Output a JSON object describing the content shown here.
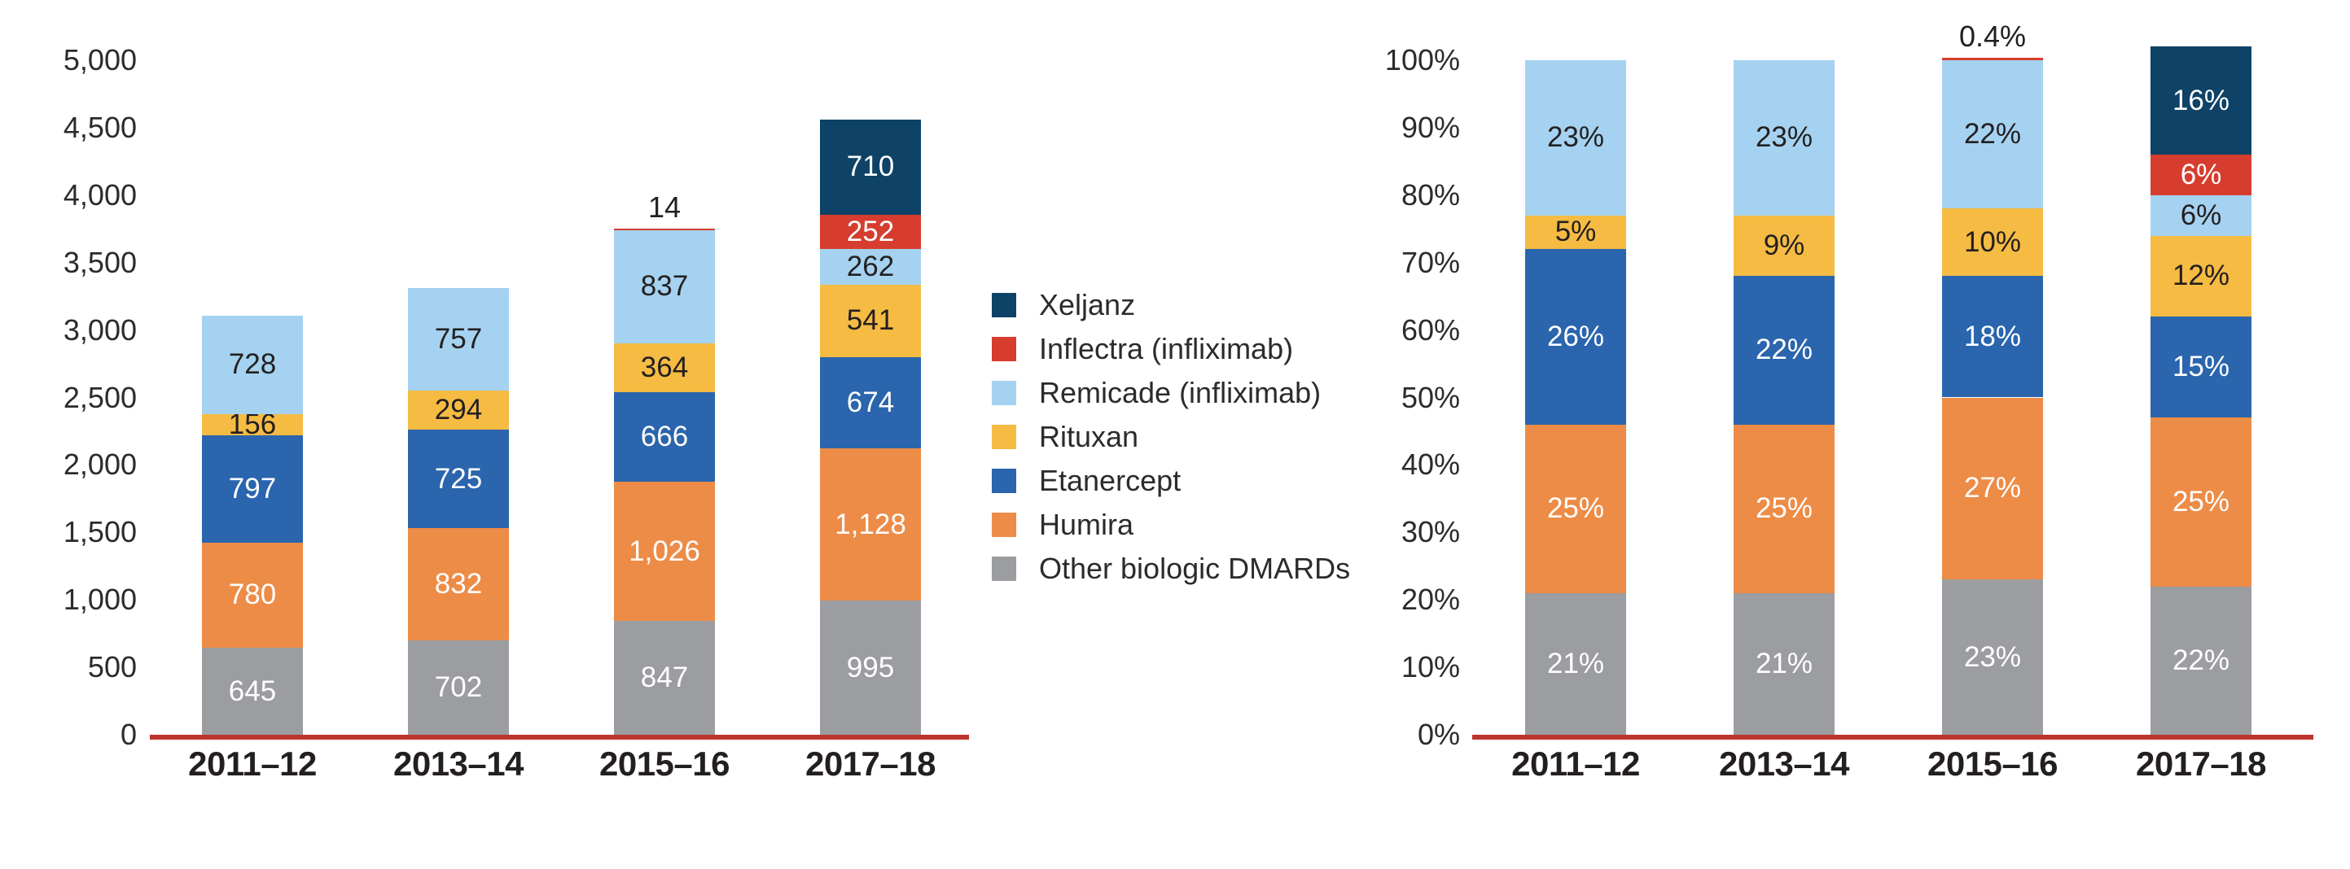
{
  "figure": {
    "background": "#ffffff",
    "axis_line_color": "#bc352d",
    "tick_text_color": "#2e2a2b",
    "category_text_color": "#231f20",
    "outside_label_color": "#231f20"
  },
  "legend": {
    "items": [
      {
        "label": "Xeljanz",
        "color": "#0e4266"
      },
      {
        "label": "Inflectra (infliximab)",
        "color": "#d63d2e"
      },
      {
        "label": "Remicade (infliximab)",
        "color": "#a5d2f0"
      },
      {
        "label": "Rituxan",
        "color": "#f5bb43"
      },
      {
        "label": "Etanercept",
        "color": "#2a65ad"
      },
      {
        "label": "Humira",
        "color": "#ed8c47"
      },
      {
        "label": "Other biologic DMARDs",
        "color": "#9b9da0"
      }
    ]
  },
  "chart_data": [
    {
      "type": "bar",
      "stacked": true,
      "title": "",
      "xlabel": "",
      "ylabel": "",
      "grid": false,
      "legend_position": "right-of-first-chart",
      "categories": [
        "2011–12",
        "2013–14",
        "2015–16",
        "2017–18"
      ],
      "ylim": [
        0,
        5000
      ],
      "yticks": [
        {
          "v": 0,
          "label": "0"
        },
        {
          "v": 500,
          "label": "500"
        },
        {
          "v": 1000,
          "label": "1,000"
        },
        {
          "v": 1500,
          "label": "1,500"
        },
        {
          "v": 2000,
          "label": "2,000"
        },
        {
          "v": 2500,
          "label": "2,500"
        },
        {
          "v": 3000,
          "label": "3,000"
        },
        {
          "v": 3500,
          "label": "3,500"
        },
        {
          "v": 4000,
          "label": "4,000"
        },
        {
          "v": 4500,
          "label": "4,500"
        },
        {
          "v": 5000,
          "label": "5,000"
        }
      ],
      "series": [
        {
          "name": "Other biologic DMARDs",
          "color": "#9b9da0",
          "label_color": "#ffffff",
          "values": [
            645,
            702,
            847,
            995
          ],
          "labels": [
            "645",
            "702",
            "847",
            "995"
          ]
        },
        {
          "name": "Humira",
          "color": "#ed8c47",
          "label_color": "#ffffff",
          "values": [
            780,
            832,
            1026,
            1128
          ],
          "labels": [
            "780",
            "832",
            "1,026",
            "1,128"
          ]
        },
        {
          "name": "Etanercept",
          "color": "#2a65ad",
          "label_color": "#ffffff",
          "values": [
            797,
            725,
            666,
            674
          ],
          "labels": [
            "797",
            "725",
            "666",
            "674"
          ]
        },
        {
          "name": "Rituxan",
          "color": "#f5bb43",
          "label_color": "#231f20",
          "values": [
            156,
            294,
            364,
            541
          ],
          "labels": [
            "156",
            "294",
            "364",
            "541"
          ]
        },
        {
          "name": "Remicade (infliximab)",
          "color": "#a5d2f0",
          "label_color": "#231f20",
          "values": [
            728,
            757,
            837,
            262
          ],
          "labels": [
            "728",
            "757",
            "837",
            "262"
          ]
        },
        {
          "name": "Inflectra (infliximab)",
          "color": "#d63d2e",
          "label_color": "#ffffff",
          "values": [
            0,
            0,
            14,
            252
          ],
          "labels": [
            "",
            "",
            "14",
            "252"
          ]
        },
        {
          "name": "Xeljanz",
          "color": "#0e4266",
          "label_color": "#ffffff",
          "values": [
            0,
            0,
            0,
            710
          ],
          "labels": [
            "",
            "",
            "",
            "710"
          ]
        }
      ]
    },
    {
      "type": "bar",
      "stacked": true,
      "title": "",
      "xlabel": "",
      "ylabel": "",
      "grid": false,
      "categories": [
        "2011–12",
        "2013–14",
        "2015–16",
        "2017–18"
      ],
      "ylim": [
        0,
        100
      ],
      "yticks": [
        {
          "v": 0,
          "label": "0%"
        },
        {
          "v": 10,
          "label": "10%"
        },
        {
          "v": 20,
          "label": "20%"
        },
        {
          "v": 30,
          "label": "30%"
        },
        {
          "v": 40,
          "label": "40%"
        },
        {
          "v": 50,
          "label": "50%"
        },
        {
          "v": 60,
          "label": "60%"
        },
        {
          "v": 70,
          "label": "70%"
        },
        {
          "v": 80,
          "label": "80%"
        },
        {
          "v": 90,
          "label": "90%"
        },
        {
          "v": 100,
          "label": "100%"
        }
      ],
      "series": [
        {
          "name": "Other biologic DMARDs",
          "color": "#9b9da0",
          "label_color": "#ffffff",
          "values": [
            21,
            21,
            23,
            22
          ],
          "labels": [
            "21%",
            "21%",
            "23%",
            "22%"
          ]
        },
        {
          "name": "Humira",
          "color": "#ed8c47",
          "label_color": "#ffffff",
          "values": [
            25,
            25,
            27,
            25
          ],
          "labels": [
            "25%",
            "25%",
            "27%",
            "25%"
          ]
        },
        {
          "name": "Etanercept",
          "color": "#2a65ad",
          "label_color": "#ffffff",
          "values": [
            26,
            22,
            18,
            15
          ],
          "labels": [
            "26%",
            "22%",
            "18%",
            "15%"
          ]
        },
        {
          "name": "Rituxan",
          "color": "#f5bb43",
          "label_color": "#231f20",
          "values": [
            5,
            9,
            10,
            12
          ],
          "labels": [
            "5%",
            "9%",
            "10%",
            "12%"
          ]
        },
        {
          "name": "Remicade (infliximab)",
          "color": "#a5d2f0",
          "label_color": "#231f20",
          "values": [
            23,
            23,
            22,
            6
          ],
          "labels": [
            "23%",
            "23%",
            "22%",
            "6%"
          ]
        },
        {
          "name": "Inflectra (infliximab)",
          "color": "#d63d2e",
          "label_color": "#ffffff",
          "values": [
            0,
            0,
            0.4,
            6
          ],
          "labels": [
            "",
            "",
            "0.4%",
            "6%"
          ]
        },
        {
          "name": "Xeljanz",
          "color": "#0e4266",
          "label_color": "#ffffff",
          "values": [
            0,
            0,
            0,
            16
          ],
          "labels": [
            "",
            "",
            "",
            "16%"
          ]
        }
      ]
    }
  ]
}
